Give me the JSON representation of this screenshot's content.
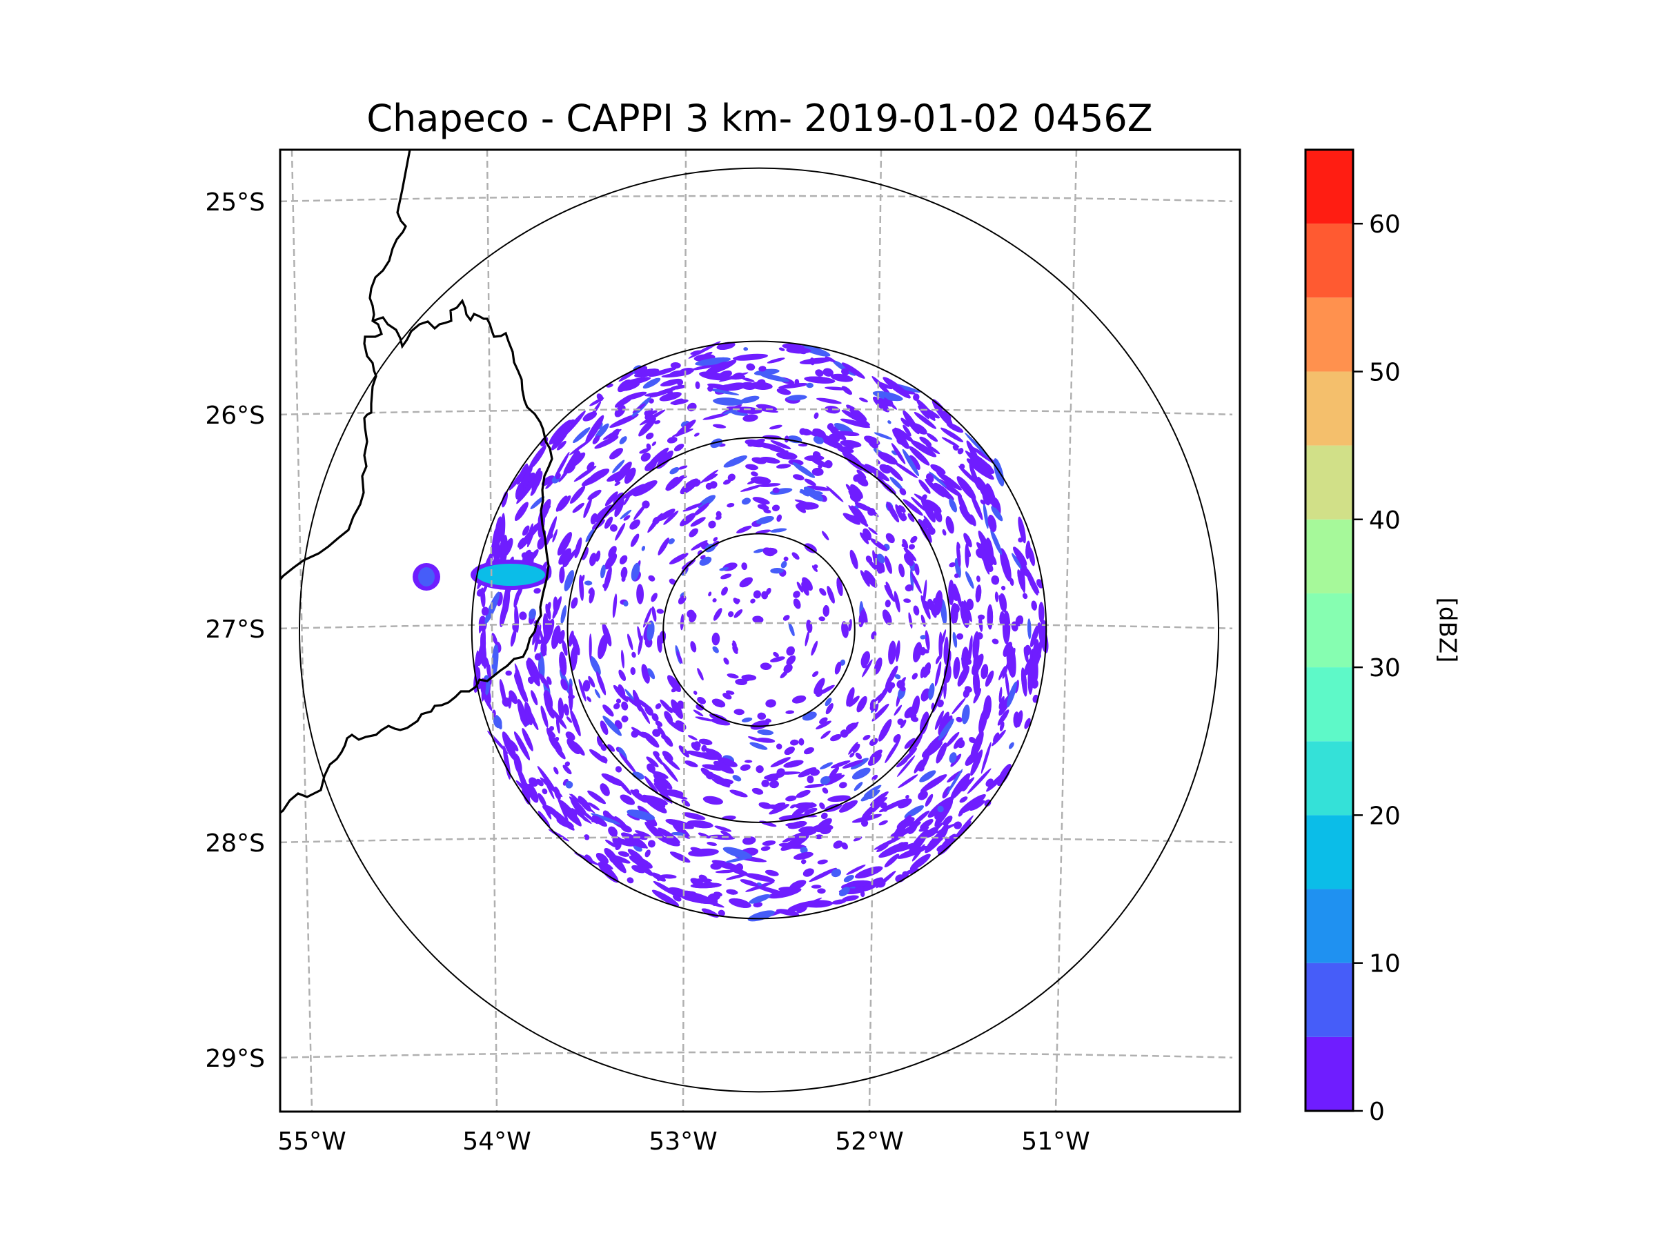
{
  "chart_data": {
    "type": "heatmap",
    "title": "Chapeco - CAPPI 3 km- 2019-01-02 0456Z",
    "subtitle": "",
    "xlabel": "",
    "ylabel": "",
    "projection": "geographic map (radar PPI/CAPPI composite)",
    "grid": true,
    "grid_style": "dashed gray",
    "x_axis": {
      "ticks": [
        -55,
        -54,
        -53,
        -52,
        -51
      ],
      "tick_labels": [
        "55°W",
        "54°W",
        "53°W",
        "52°W",
        "51°W"
      ],
      "range_deg": [
        -55.17,
        -50.0
      ]
    },
    "y_axis": {
      "ticks": [
        -25,
        -26,
        -27,
        -28,
        -29
      ],
      "tick_labels": [
        "25°S",
        "26°S",
        "27°S",
        "28°S",
        "29°S"
      ],
      "range_deg": [
        -29.3,
        -24.8
      ]
    },
    "radar": {
      "name": "Chapeco",
      "product": "CAPPI 3 km",
      "date": "2019-01-02",
      "time": "0456Z",
      "center_lon": -52.6,
      "center_lat": -27.02,
      "range_rings_km": [
        50,
        100,
        150,
        240
      ]
    },
    "colorbar": {
      "label": "[dBZ]",
      "ticks": [
        0,
        10,
        20,
        30,
        40,
        50,
        60
      ],
      "tick_labels": [
        "0",
        "10",
        "20",
        "30",
        "40",
        "50",
        "60"
      ],
      "range": [
        0,
        65
      ],
      "placement": "right",
      "levels": [
        {
          "from": 0,
          "to": 5,
          "color": "#6f1dff"
        },
        {
          "from": 5,
          "to": 10,
          "color": "#465df9"
        },
        {
          "from": 10,
          "to": 15,
          "color": "#1f91f1"
        },
        {
          "from": 15,
          "to": 20,
          "color": "#0bbde8"
        },
        {
          "from": 20,
          "to": 25,
          "color": "#34e1d8"
        },
        {
          "from": 25,
          "to": 30,
          "color": "#5ef9c8"
        },
        {
          "from": 30,
          "to": 35,
          "color": "#86feb1"
        },
        {
          "from": 35,
          "to": 40,
          "color": "#a6f99a"
        },
        {
          "from": 40,
          "to": 45,
          "color": "#d1e088"
        },
        {
          "from": 45,
          "to": 50,
          "color": "#f4bf6c"
        },
        {
          "from": 50,
          "to": 55,
          "color": "#ff914e"
        },
        {
          "from": 55,
          "to": 60,
          "color": "#ff5a31"
        },
        {
          "from": 60,
          "to": 65,
          "color": "#ff1d12"
        }
      ]
    },
    "echoes": {
      "description": "Widespread weak scattered echoes (0-10 dBZ) within 150 km ring; denser at 100-150 km; one stronger cell (10-20 dBZ) west of radar near 54.1°W, 26.75°S",
      "max_dbz_approx": 20,
      "notable_cells": [
        {
          "lon": -54.05,
          "lat": -26.76,
          "dbz": 15
        },
        {
          "lon": -54.5,
          "lat": -26.77,
          "dbz": 8
        }
      ]
    },
    "overlays": [
      "country/state borders (black)",
      "range rings (black, thin)"
    ]
  }
}
